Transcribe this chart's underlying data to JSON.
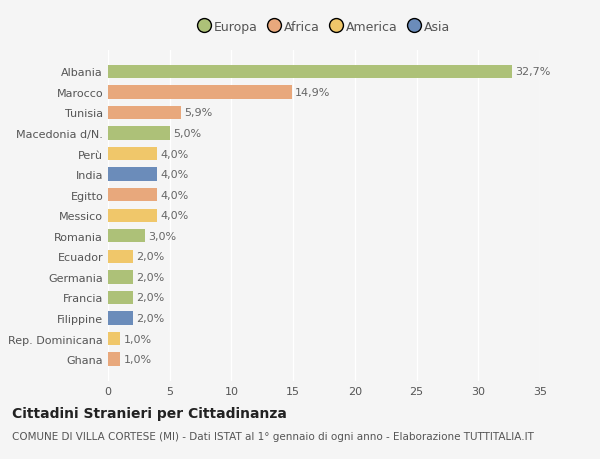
{
  "title": "Cittadini Stranieri per Cittadinanza",
  "subtitle": "COMUNE DI VILLA CORTESE (MI) - Dati ISTAT al 1° gennaio di ogni anno - Elaborazione TUTTITALIA.IT",
  "categories": [
    "Albania",
    "Marocco",
    "Tunisia",
    "Macedonia d/N.",
    "Perù",
    "India",
    "Egitto",
    "Messico",
    "Romania",
    "Ecuador",
    "Germania",
    "Francia",
    "Filippine",
    "Rep. Dominicana",
    "Ghana"
  ],
  "values": [
    32.7,
    14.9,
    5.9,
    5.0,
    4.0,
    4.0,
    4.0,
    4.0,
    3.0,
    2.0,
    2.0,
    2.0,
    2.0,
    1.0,
    1.0
  ],
  "labels": [
    "32,7%",
    "14,9%",
    "5,9%",
    "5,0%",
    "4,0%",
    "4,0%",
    "4,0%",
    "4,0%",
    "3,0%",
    "2,0%",
    "2,0%",
    "2,0%",
    "2,0%",
    "1,0%",
    "1,0%"
  ],
  "colors": [
    "#adc178",
    "#e8a87c",
    "#e8a87c",
    "#adc178",
    "#f0c76a",
    "#6b8cba",
    "#e8a87c",
    "#f0c76a",
    "#adc178",
    "#f0c76a",
    "#adc178",
    "#adc178",
    "#6b8cba",
    "#f0c76a",
    "#e8a87c"
  ],
  "legend_labels": [
    "Europa",
    "Africa",
    "America",
    "Asia"
  ],
  "legend_colors": [
    "#adc178",
    "#e8a87c",
    "#f0c76a",
    "#6b8cba"
  ],
  "xlim": [
    0,
    35
  ],
  "xticks": [
    0,
    5,
    10,
    15,
    20,
    25,
    30,
    35
  ],
  "background_color": "#f5f5f5",
  "bar_height": 0.65,
  "title_fontsize": 10,
  "subtitle_fontsize": 7.5,
  "label_fontsize": 8,
  "tick_fontsize": 8,
  "legend_fontsize": 9
}
